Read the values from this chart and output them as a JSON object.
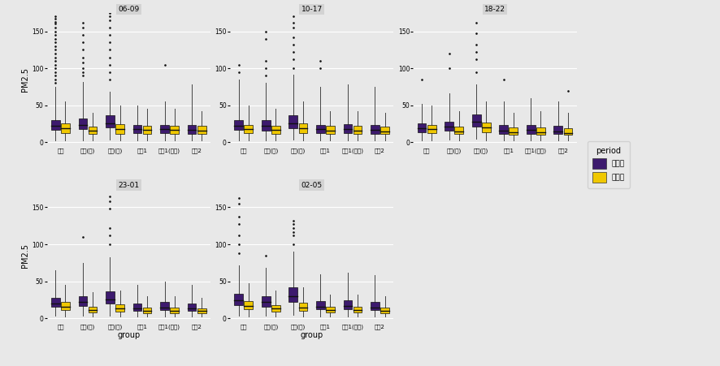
{
  "panels": [
    "06-09",
    "10-17",
    "18-22",
    "23-01",
    "02-05"
  ],
  "groups": [
    "실더",
    "환승(우)",
    "환승(좌)",
    "필터1",
    "필터1(외부)",
    "필터2"
  ],
  "xlabel": "group",
  "ylabel": "PM2.5",
  "legend_title": "period",
  "legend_labels": [
    "설치전",
    "설치후"
  ],
  "colors": {
    "pre": "#3d1a6e",
    "post": "#f0c800"
  },
  "background_color": "#e8e8e8",
  "panel_bg": "#e8e8e8",
  "strip_bg": "#d3d3d3",
  "grid_color": "white",
  "ylim": [
    -5,
    175
  ],
  "yticks": [
    0,
    50,
    100,
    150
  ],
  "box_data": {
    "06-09": {
      "pre": [
        {
          "q1": 17,
          "median": 22,
          "q3": 30,
          "whislo": 3,
          "whishi": 75,
          "fliers": [
            80,
            85,
            90,
            95,
            100,
            105,
            110,
            115,
            120,
            125,
            130,
            135,
            140,
            145,
            150,
            155,
            160,
            163,
            167,
            170
          ]
        },
        {
          "q1": 18,
          "median": 24,
          "q3": 32,
          "whislo": 3,
          "whishi": 82,
          "fliers": [
            90,
            95,
            100,
            108,
            115,
            125,
            135,
            145,
            155,
            162
          ]
        },
        {
          "q1": 20,
          "median": 26,
          "q3": 37,
          "whislo": 4,
          "whishi": 68,
          "fliers": [
            85,
            95,
            105,
            115,
            125,
            135,
            145,
            155,
            165,
            170,
            175,
            178
          ]
        },
        {
          "q1": 13,
          "median": 18,
          "q3": 24,
          "whislo": 3,
          "whishi": 50,
          "fliers": []
        },
        {
          "q1": 13,
          "median": 18,
          "q3": 24,
          "whislo": 3,
          "whishi": 55,
          "fliers": [
            105
          ]
        },
        {
          "q1": 12,
          "median": 17,
          "q3": 23,
          "whislo": 3,
          "whishi": 78,
          "fliers": []
        }
      ],
      "post": [
        {
          "q1": 13,
          "median": 19,
          "q3": 26,
          "whislo": 3,
          "whishi": 55,
          "fliers": []
        },
        {
          "q1": 11,
          "median": 16,
          "q3": 21,
          "whislo": 3,
          "whishi": 40,
          "fliers": []
        },
        {
          "q1": 12,
          "median": 18,
          "q3": 25,
          "whislo": 3,
          "whishi": 50,
          "fliers": []
        },
        {
          "q1": 12,
          "median": 17,
          "q3": 22,
          "whislo": 3,
          "whishi": 45,
          "fliers": []
        },
        {
          "q1": 12,
          "median": 17,
          "q3": 22,
          "whislo": 3,
          "whishi": 45,
          "fliers": []
        },
        {
          "q1": 11,
          "median": 16,
          "q3": 22,
          "whislo": 3,
          "whishi": 42,
          "fliers": []
        }
      ]
    },
    "10-17": {
      "pre": [
        {
          "q1": 17,
          "median": 22,
          "q3": 30,
          "whislo": 3,
          "whishi": 85,
          "fliers": [
            95,
            105
          ]
        },
        {
          "q1": 16,
          "median": 22,
          "q3": 30,
          "whislo": 3,
          "whishi": 80,
          "fliers": [
            90,
            100,
            110,
            140,
            150
          ]
        },
        {
          "q1": 19,
          "median": 26,
          "q3": 37,
          "whislo": 4,
          "whishi": 92,
          "fliers": [
            100,
            112,
            122,
            132,
            142,
            155,
            162,
            170
          ]
        },
        {
          "q1": 13,
          "median": 18,
          "q3": 24,
          "whislo": 3,
          "whishi": 75,
          "fliers": [
            100,
            110
          ]
        },
        {
          "q1": 13,
          "median": 18,
          "q3": 25,
          "whislo": 3,
          "whishi": 78,
          "fliers": []
        },
        {
          "q1": 12,
          "median": 17,
          "q3": 24,
          "whislo": 3,
          "whishi": 75,
          "fliers": []
        }
      ],
      "post": [
        {
          "q1": 13,
          "median": 18,
          "q3": 24,
          "whislo": 3,
          "whishi": 50,
          "fliers": []
        },
        {
          "q1": 12,
          "median": 17,
          "q3": 22,
          "whislo": 3,
          "whishi": 45,
          "fliers": []
        },
        {
          "q1": 13,
          "median": 19,
          "q3": 26,
          "whislo": 3,
          "whishi": 55,
          "fliers": []
        },
        {
          "q1": 12,
          "median": 16,
          "q3": 22,
          "whislo": 3,
          "whishi": 42,
          "fliers": []
        },
        {
          "q1": 12,
          "median": 16,
          "q3": 22,
          "whislo": 3,
          "whishi": 42,
          "fliers": []
        },
        {
          "q1": 11,
          "median": 15,
          "q3": 21,
          "whislo": 3,
          "whishi": 40,
          "fliers": []
        }
      ]
    },
    "18-22": {
      "pre": [
        {
          "q1": 14,
          "median": 19,
          "q3": 26,
          "whislo": 3,
          "whishi": 52,
          "fliers": [
            85
          ]
        },
        {
          "q1": 16,
          "median": 21,
          "q3": 28,
          "whislo": 4,
          "whishi": 66,
          "fliers": [
            100,
            120
          ]
        },
        {
          "q1": 21,
          "median": 28,
          "q3": 38,
          "whislo": 5,
          "whishi": 78,
          "fliers": [
            95,
            112,
            122,
            132,
            147,
            162
          ]
        },
        {
          "q1": 11,
          "median": 16,
          "q3": 23,
          "whislo": 3,
          "whishi": 55,
          "fliers": [
            85
          ]
        },
        {
          "q1": 12,
          "median": 17,
          "q3": 24,
          "whislo": 3,
          "whishi": 60,
          "fliers": []
        },
        {
          "q1": 11,
          "median": 15,
          "q3": 22,
          "whislo": 3,
          "whishi": 55,
          "fliers": []
        }
      ],
      "post": [
        {
          "q1": 13,
          "median": 18,
          "q3": 24,
          "whislo": 3,
          "whishi": 50,
          "fliers": []
        },
        {
          "q1": 11,
          "median": 15,
          "q3": 21,
          "whislo": 3,
          "whishi": 42,
          "fliers": []
        },
        {
          "q1": 14,
          "median": 20,
          "q3": 27,
          "whislo": 3,
          "whishi": 55,
          "fliers": []
        },
        {
          "q1": 10,
          "median": 14,
          "q3": 20,
          "whislo": 3,
          "whishi": 40,
          "fliers": []
        },
        {
          "q1": 10,
          "median": 14,
          "q3": 20,
          "whislo": 3,
          "whishi": 42,
          "fliers": []
        },
        {
          "q1": 10,
          "median": 13,
          "q3": 19,
          "whislo": 3,
          "whishi": 40,
          "fliers": [
            70
          ]
        }
      ]
    },
    "23-01": {
      "pre": [
        {
          "q1": 16,
          "median": 20,
          "q3": 28,
          "whislo": 4,
          "whishi": 65,
          "fliers": []
        },
        {
          "q1": 17,
          "median": 22,
          "q3": 30,
          "whislo": 4,
          "whishi": 75,
          "fliers": [
            110
          ]
        },
        {
          "q1": 20,
          "median": 26,
          "q3": 36,
          "whislo": 4,
          "whishi": 82,
          "fliers": [
            100,
            112,
            122,
            148,
            158,
            165
          ]
        },
        {
          "q1": 10,
          "median": 14,
          "q3": 20,
          "whislo": 3,
          "whishi": 45,
          "fliers": []
        },
        {
          "q1": 11,
          "median": 15,
          "q3": 22,
          "whislo": 3,
          "whishi": 50,
          "fliers": []
        },
        {
          "q1": 10,
          "median": 14,
          "q3": 20,
          "whislo": 3,
          "whishi": 45,
          "fliers": []
        }
      ],
      "post": [
        {
          "q1": 11,
          "median": 16,
          "q3": 22,
          "whislo": 3,
          "whishi": 45,
          "fliers": []
        },
        {
          "q1": 8,
          "median": 11,
          "q3": 16,
          "whislo": 2,
          "whishi": 35,
          "fliers": []
        },
        {
          "q1": 9,
          "median": 13,
          "q3": 19,
          "whislo": 2,
          "whishi": 38,
          "fliers": []
        },
        {
          "q1": 7,
          "median": 10,
          "q3": 15,
          "whislo": 2,
          "whishi": 30,
          "fliers": []
        },
        {
          "q1": 7,
          "median": 10,
          "q3": 15,
          "whislo": 2,
          "whishi": 30,
          "fliers": []
        },
        {
          "q1": 7,
          "median": 10,
          "q3": 14,
          "whislo": 2,
          "whishi": 28,
          "fliers": []
        }
      ]
    },
    "02-05": {
      "pre": [
        {
          "q1": 18,
          "median": 24,
          "q3": 33,
          "whislo": 4,
          "whishi": 72,
          "fliers": [
            88,
            100,
            112,
            127,
            137,
            155,
            162
          ]
        },
        {
          "q1": 16,
          "median": 22,
          "q3": 30,
          "whislo": 4,
          "whishi": 68,
          "fliers": [
            85
          ]
        },
        {
          "q1": 22,
          "median": 30,
          "q3": 42,
          "whislo": 5,
          "whishi": 90,
          "fliers": [
            100,
            112,
            117,
            122,
            128,
            132
          ]
        },
        {
          "q1": 12,
          "median": 16,
          "q3": 23,
          "whislo": 3,
          "whishi": 60,
          "fliers": []
        },
        {
          "q1": 12,
          "median": 17,
          "q3": 24,
          "whislo": 3,
          "whishi": 62,
          "fliers": []
        },
        {
          "q1": 11,
          "median": 15,
          "q3": 22,
          "whislo": 3,
          "whishi": 58,
          "fliers": []
        }
      ],
      "post": [
        {
          "q1": 12,
          "median": 17,
          "q3": 23,
          "whislo": 3,
          "whishi": 48,
          "fliers": []
        },
        {
          "q1": 9,
          "median": 13,
          "q3": 18,
          "whislo": 2,
          "whishi": 38,
          "fliers": []
        },
        {
          "q1": 10,
          "median": 15,
          "q3": 21,
          "whislo": 2,
          "whishi": 42,
          "fliers": []
        },
        {
          "q1": 8,
          "median": 11,
          "q3": 16,
          "whislo": 2,
          "whishi": 32,
          "fliers": []
        },
        {
          "q1": 8,
          "median": 11,
          "q3": 16,
          "whislo": 2,
          "whishi": 32,
          "fliers": []
        },
        {
          "q1": 7,
          "median": 10,
          "q3": 15,
          "whislo": 2,
          "whishi": 30,
          "fliers": []
        }
      ]
    }
  }
}
